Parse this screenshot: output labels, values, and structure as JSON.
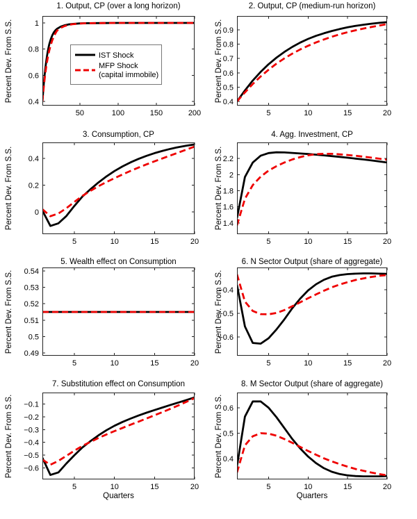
{
  "figure": {
    "ylabel": "Percent Dev. From S.S.",
    "xlabel": "Quarters",
    "background": "#ffffff",
    "axes_color": "#222222",
    "series_styles": [
      {
        "name": "IST Shock",
        "color": "#000000",
        "dash": "solid",
        "width": 2.8
      },
      {
        "name": "MFP Shock (capital immobile)",
        "color": "#ee0000",
        "dash": "dashed",
        "width": 2.8
      }
    ],
    "legend": {
      "position": "panel-1-center",
      "entries": [
        {
          "label_lines": [
            "IST Shock"
          ],
          "series": 0
        },
        {
          "label_lines": [
            "MFP Shock",
            "(capital immobile)"
          ],
          "series": 1
        }
      ]
    }
  },
  "chart_data": [
    {
      "type": "line",
      "title": "1. Output, CP (over a long horizon)",
      "legend": true,
      "xlim": [
        1,
        200
      ],
      "ylim": [
        0.368,
        1.053
      ],
      "xticks": [
        50,
        100,
        150,
        200
      ],
      "xtick_labels": [
        "50",
        "100",
        "150",
        "200"
      ],
      "yticks": [
        0.4,
        0.6,
        0.8,
        1
      ],
      "ytick_labels": [
        "0.4",
        "0.6",
        "0.8",
        "1"
      ],
      "x": [
        1,
        2,
        3,
        4,
        5,
        6,
        7,
        8,
        9,
        10,
        12,
        14,
        16,
        18,
        20,
        25,
        30,
        35,
        40,
        50,
        60,
        80,
        100,
        125,
        150,
        175,
        200
      ],
      "series": [
        {
          "name": "IST Shock",
          "values": [
            0.4,
            0.477,
            0.546,
            0.607,
            0.66,
            0.706,
            0.746,
            0.781,
            0.811,
            0.837,
            0.876,
            0.906,
            0.928,
            0.943,
            0.954,
            0.972,
            0.982,
            0.988,
            0.992,
            0.996,
            0.998,
            0.999,
            1.0,
            1.0,
            1.0,
            1.0,
            1.0
          ]
        },
        {
          "name": "MFP Shock (capital immobile)",
          "values": [
            0.4,
            0.463,
            0.522,
            0.575,
            0.622,
            0.664,
            0.701,
            0.734,
            0.763,
            0.789,
            0.833,
            0.869,
            0.897,
            0.92,
            0.94,
            0.962,
            0.976,
            0.984,
            0.99,
            0.995,
            0.998,
            0.999,
            1.0,
            1.0,
            1.0,
            1.0,
            1.0
          ]
        }
      ]
    },
    {
      "type": "line",
      "title": "2. Output, CP (medium-run horizon)",
      "legend": false,
      "xlim": [
        1,
        20
      ],
      "ylim": [
        0.371,
        0.997
      ],
      "xticks": [
        5,
        10,
        15,
        20
      ],
      "xtick_labels": [
        "5",
        "10",
        "15",
        "20"
      ],
      "yticks": [
        0.4,
        0.5,
        0.6,
        0.7,
        0.8,
        0.9
      ],
      "ytick_labels": [
        "0.4",
        "0.5",
        "0.6",
        "0.7",
        "0.8",
        "0.9"
      ],
      "x": [
        1,
        2,
        3,
        4,
        5,
        6,
        7,
        8,
        9,
        10,
        11,
        12,
        13,
        14,
        15,
        16,
        17,
        18,
        19,
        20
      ],
      "series": [
        {
          "name": "IST Shock",
          "values": [
            0.4,
            0.477,
            0.546,
            0.607,
            0.66,
            0.706,
            0.746,
            0.781,
            0.811,
            0.837,
            0.858,
            0.876,
            0.892,
            0.906,
            0.918,
            0.928,
            0.936,
            0.943,
            0.949,
            0.954
          ]
        },
        {
          "name": "MFP Shock (capital immobile)",
          "values": [
            0.4,
            0.463,
            0.522,
            0.575,
            0.622,
            0.664,
            0.701,
            0.734,
            0.763,
            0.789,
            0.812,
            0.833,
            0.852,
            0.869,
            0.884,
            0.897,
            0.909,
            0.92,
            0.93,
            0.94
          ]
        }
      ]
    },
    {
      "type": "line",
      "title": "3. Consumption, CP",
      "legend": false,
      "xlim": [
        1,
        20
      ],
      "ylim": [
        -0.166,
        0.519
      ],
      "xticks": [
        5,
        10,
        15,
        20
      ],
      "xtick_labels": [
        "5",
        "10",
        "15",
        "20"
      ],
      "yticks": [
        0,
        0.2,
        0.4
      ],
      "ytick_labels": [
        "0",
        "0.2",
        "0.4"
      ],
      "x": [
        1,
        2,
        3,
        4,
        5,
        6,
        7,
        8,
        9,
        10,
        11,
        12,
        13,
        14,
        15,
        16,
        17,
        18,
        19,
        20
      ],
      "series": [
        {
          "name": "IST Shock",
          "values": [
            0.01,
            -0.105,
            -0.085,
            -0.03,
            0.045,
            0.115,
            0.17,
            0.22,
            0.265,
            0.305,
            0.34,
            0.37,
            0.396,
            0.419,
            0.439,
            0.456,
            0.471,
            0.484,
            0.495,
            0.504
          ]
        },
        {
          "name": "MFP Shock (capital immobile)",
          "values": [
            0.02,
            -0.032,
            -0.012,
            0.028,
            0.075,
            0.12,
            0.158,
            0.192,
            0.223,
            0.252,
            0.28,
            0.306,
            0.331,
            0.355,
            0.378,
            0.4,
            0.422,
            0.444,
            0.466,
            0.488
          ]
        }
      ]
    },
    {
      "type": "line",
      "title": "4. Agg. Investment, CP",
      "legend": false,
      "xlim": [
        1,
        20
      ],
      "ylim": [
        1.26,
        2.4
      ],
      "xticks": [
        5,
        10,
        15,
        20
      ],
      "xtick_labels": [
        "5",
        "10",
        "15",
        "20"
      ],
      "yticks": [
        1.4,
        1.6,
        1.8,
        2,
        2.2
      ],
      "ytick_labels": [
        "1.4",
        "1.6",
        "1.8",
        "2",
        "2.2"
      ],
      "x": [
        1,
        2,
        3,
        4,
        5,
        6,
        7,
        8,
        9,
        10,
        11,
        12,
        13,
        14,
        15,
        16,
        17,
        18,
        19,
        20
      ],
      "series": [
        {
          "name": "IST Shock",
          "values": [
            1.46,
            1.97,
            2.15,
            2.235,
            2.268,
            2.277,
            2.276,
            2.27,
            2.263,
            2.256,
            2.248,
            2.239,
            2.23,
            2.22,
            2.21,
            2.199,
            2.188,
            2.176,
            2.163,
            2.15
          ]
        },
        {
          "name": "MFP Shock (capital immobile)",
          "values": [
            1.37,
            1.7,
            1.87,
            1.975,
            2.05,
            2.105,
            2.15,
            2.188,
            2.218,
            2.24,
            2.254,
            2.259,
            2.258,
            2.252,
            2.244,
            2.234,
            2.223,
            2.211,
            2.198,
            2.185
          ]
        }
      ]
    },
    {
      "type": "line",
      "title": "5. Wealth effect on Consumption",
      "legend": false,
      "xlim": [
        1,
        20
      ],
      "ylim": [
        0.4883,
        0.5421
      ],
      "xticks": [
        5,
        10,
        15,
        20
      ],
      "xtick_labels": [
        "5",
        "10",
        "15",
        "20"
      ],
      "yticks": [
        0.49,
        0.5,
        0.51,
        0.52,
        0.53,
        0.54
      ],
      "ytick_labels": [
        "0.49",
        "0.5",
        "0.51",
        "0.52",
        "0.53",
        "0.54"
      ],
      "x": [
        1,
        2,
        3,
        4,
        5,
        6,
        7,
        8,
        9,
        10,
        11,
        12,
        13,
        14,
        15,
        16,
        17,
        18,
        19,
        20
      ],
      "series": [
        {
          "name": "IST Shock",
          "values": [
            0.515,
            0.515,
            0.515,
            0.515,
            0.515,
            0.515,
            0.515,
            0.515,
            0.515,
            0.515,
            0.515,
            0.515,
            0.515,
            0.515,
            0.515,
            0.515,
            0.515,
            0.515,
            0.515,
            0.515
          ]
        },
        {
          "name": "MFP Shock (capital immobile)",
          "values": [
            0.515,
            0.515,
            0.515,
            0.515,
            0.515,
            0.515,
            0.515,
            0.515,
            0.515,
            0.515,
            0.515,
            0.515,
            0.515,
            0.515,
            0.515,
            0.515,
            0.515,
            0.515,
            0.515,
            0.515
          ]
        }
      ]
    },
    {
      "type": "line",
      "title": "6. N Sector Output (share of aggregate)",
      "legend": false,
      "xlim": [
        1,
        20
      ],
      "ylim": [
        -0.679,
        -0.306
      ],
      "xticks": [
        5,
        10,
        15,
        20
      ],
      "xtick_labels": [
        "5",
        "10",
        "15",
        "20"
      ],
      "yticks": [
        -0.4,
        -0.5,
        -0.6
      ],
      "ytick_labels": [
        "−0.4",
        "−0.5",
        "−0.6"
      ],
      "x": [
        1,
        2,
        3,
        4,
        5,
        6,
        7,
        8,
        9,
        10,
        11,
        12,
        13,
        14,
        15,
        16,
        17,
        18,
        19,
        20
      ],
      "series": [
        {
          "name": "IST Shock",
          "values": [
            -0.38,
            -0.555,
            -0.625,
            -0.628,
            -0.605,
            -0.568,
            -0.525,
            -0.478,
            -0.438,
            -0.403,
            -0.377,
            -0.358,
            -0.345,
            -0.338,
            -0.334,
            -0.332,
            -0.331,
            -0.331,
            -0.332,
            -0.333
          ]
        },
        {
          "name": "MFP Shock (capital immobile)",
          "values": [
            -0.335,
            -0.45,
            -0.49,
            -0.503,
            -0.504,
            -0.498,
            -0.486,
            -0.47,
            -0.453,
            -0.436,
            -0.42,
            -0.404,
            -0.39,
            -0.378,
            -0.368,
            -0.359,
            -0.352,
            -0.346,
            -0.341,
            -0.338
          ]
        }
      ]
    },
    {
      "type": "line",
      "title": "7. Substitution effect on Consumption",
      "legend": false,
      "xlabel": "Quarters",
      "xlim": [
        1,
        20
      ],
      "ylim": [
        -0.69,
        -0.01
      ],
      "xticks": [
        5,
        10,
        15,
        20
      ],
      "xtick_labels": [
        "5",
        "10",
        "15",
        "20"
      ],
      "yticks": [
        -0.1,
        -0.2,
        -0.3,
        -0.4,
        -0.5,
        -0.6
      ],
      "ytick_labels": [
        "−0.1",
        "−0.2",
        "−0.3",
        "−0.4",
        "−0.5",
        "−0.6"
      ],
      "x": [
        1,
        2,
        3,
        4,
        5,
        6,
        7,
        8,
        9,
        10,
        11,
        12,
        13,
        14,
        15,
        16,
        17,
        18,
        19,
        20
      ],
      "series": [
        {
          "name": "IST Shock",
          "values": [
            -0.52,
            -0.655,
            -0.635,
            -0.565,
            -0.5,
            -0.44,
            -0.39,
            -0.345,
            -0.305,
            -0.27,
            -0.24,
            -0.214,
            -0.19,
            -0.168,
            -0.147,
            -0.127,
            -0.107,
            -0.088,
            -0.068,
            -0.048
          ]
        },
        {
          "name": "MFP Shock (capital immobile)",
          "values": [
            -0.535,
            -0.575,
            -0.545,
            -0.505,
            -0.465,
            -0.428,
            -0.396,
            -0.366,
            -0.338,
            -0.312,
            -0.287,
            -0.262,
            -0.238,
            -0.213,
            -0.188,
            -0.163,
            -0.137,
            -0.11,
            -0.082,
            -0.053
          ]
        }
      ]
    },
    {
      "type": "line",
      "title": "8. M Sector Output (share of aggregate)",
      "legend": false,
      "xlabel": "Quarters",
      "xlim": [
        1,
        20
      ],
      "ylim": [
        0.318,
        0.66
      ],
      "xticks": [
        5,
        10,
        15,
        20
      ],
      "xtick_labels": [
        "5",
        "10",
        "15",
        "20"
      ],
      "yticks": [
        0.4,
        0.5,
        0.6
      ],
      "ytick_labels": [
        "0.4",
        "0.5",
        "0.6"
      ],
      "x": [
        1,
        2,
        3,
        4,
        5,
        6,
        7,
        8,
        9,
        10,
        11,
        12,
        13,
        14,
        15,
        16,
        17,
        18,
        19,
        20
      ],
      "series": [
        {
          "name": "IST Shock",
          "values": [
            0.37,
            0.565,
            0.625,
            0.625,
            0.6,
            0.563,
            0.52,
            0.477,
            0.44,
            0.408,
            0.382,
            0.362,
            0.348,
            0.339,
            0.334,
            0.331,
            0.33,
            0.33,
            0.33,
            0.331
          ]
        },
        {
          "name": "MFP Shock (capital immobile)",
          "values": [
            0.345,
            0.452,
            0.488,
            0.5,
            0.498,
            0.49,
            0.477,
            0.462,
            0.446,
            0.43,
            0.415,
            0.401,
            0.389,
            0.378,
            0.368,
            0.359,
            0.352,
            0.345,
            0.339,
            0.334
          ]
        }
      ]
    }
  ]
}
